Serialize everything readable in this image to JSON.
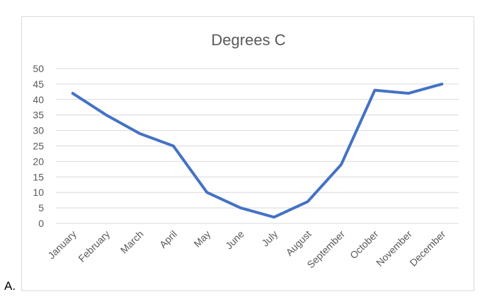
{
  "item_label": "A.",
  "chart_data": {
    "type": "line",
    "title": "Degrees C",
    "xlabel": "",
    "ylabel": "",
    "categories": [
      "January",
      "February",
      "March",
      "April",
      "May",
      "June",
      "July",
      "August",
      "September",
      "October",
      "November",
      "December"
    ],
    "series": [
      {
        "values": [
          42,
          35,
          29,
          25,
          10,
          5,
          2,
          7,
          19,
          43,
          42,
          45
        ],
        "color": "#4472c4"
      }
    ],
    "ylim": [
      0,
      50
    ],
    "yticks": [
      "0",
      "5",
      "10",
      "15",
      "20",
      "25",
      "30",
      "35",
      "40",
      "45",
      "50"
    ],
    "grid": true,
    "legend": "none"
  }
}
